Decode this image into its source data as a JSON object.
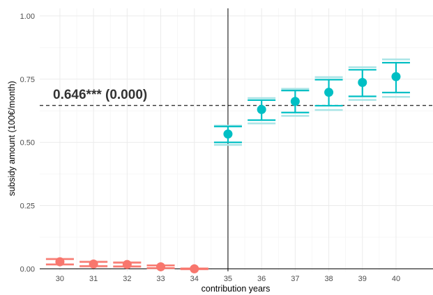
{
  "chart_data": {
    "type": "scatter",
    "xlabel": "contribution years",
    "ylabel": "subsidy amount (100€/month)",
    "xlim": [
      29.4,
      41.1
    ],
    "ylim": [
      -0.01,
      1.03
    ],
    "x_ticks": [
      30,
      31,
      32,
      33,
      34,
      35,
      36,
      37,
      38,
      39,
      40
    ],
    "y_ticks": [
      0.0,
      0.25,
      0.5,
      0.75,
      1.0
    ],
    "y_tick_labels": [
      "0.00",
      "0.25",
      "0.50",
      "0.75",
      "1.00"
    ],
    "grid": true,
    "threshold_x": 35,
    "reference_line_y": 0.646,
    "annotation": "0.646*** (0.000)",
    "colors": {
      "below": "#f8766d",
      "above": "#00bfc4",
      "light_above": "#a9e4e6",
      "light_below": "#f9b6b0",
      "axis": "#000000",
      "dashed": "#333333"
    },
    "points": [
      {
        "x": 30,
        "y": 0.028,
        "ci_low": 0.018,
        "ci_high": 0.038,
        "ci2_low": 0.016,
        "ci2_high": 0.04,
        "group": "below"
      },
      {
        "x": 31,
        "y": 0.019,
        "ci_low": 0.011,
        "ci_high": 0.027,
        "ci2_low": 0.009,
        "ci2_high": 0.029,
        "group": "below"
      },
      {
        "x": 32,
        "y": 0.017,
        "ci_low": 0.01,
        "ci_high": 0.024,
        "ci2_low": 0.008,
        "ci2_high": 0.026,
        "group": "below"
      },
      {
        "x": 33,
        "y": 0.008,
        "ci_low": 0.003,
        "ci_high": 0.013,
        "ci2_low": 0.002,
        "ci2_high": 0.014,
        "group": "below"
      },
      {
        "x": 34,
        "y": 0.0,
        "ci_low": -0.001,
        "ci_high": 0.001,
        "ci2_low": -0.002,
        "ci2_high": 0.002,
        "group": "below"
      },
      {
        "x": 35,
        "y": 0.533,
        "ci_low": 0.5,
        "ci_high": 0.563,
        "ci2_low": 0.49,
        "ci2_high": 0.566,
        "group": "above"
      },
      {
        "x": 36,
        "y": 0.63,
        "ci_low": 0.588,
        "ci_high": 0.667,
        "ci2_low": 0.575,
        "ci2_high": 0.675,
        "group": "above"
      },
      {
        "x": 37,
        "y": 0.662,
        "ci_low": 0.618,
        "ci_high": 0.705,
        "ci2_low": 0.605,
        "ci2_high": 0.712,
        "group": "above"
      },
      {
        "x": 38,
        "y": 0.698,
        "ci_low": 0.645,
        "ci_high": 0.748,
        "ci2_low": 0.628,
        "ci2_high": 0.758,
        "group": "above"
      },
      {
        "x": 39,
        "y": 0.737,
        "ci_low": 0.682,
        "ci_high": 0.787,
        "ci2_low": 0.668,
        "ci2_high": 0.797,
        "group": "above"
      },
      {
        "x": 40,
        "y": 0.76,
        "ci_low": 0.697,
        "ci_high": 0.815,
        "ci2_low": 0.68,
        "ci2_high": 0.828,
        "group": "above"
      }
    ]
  }
}
